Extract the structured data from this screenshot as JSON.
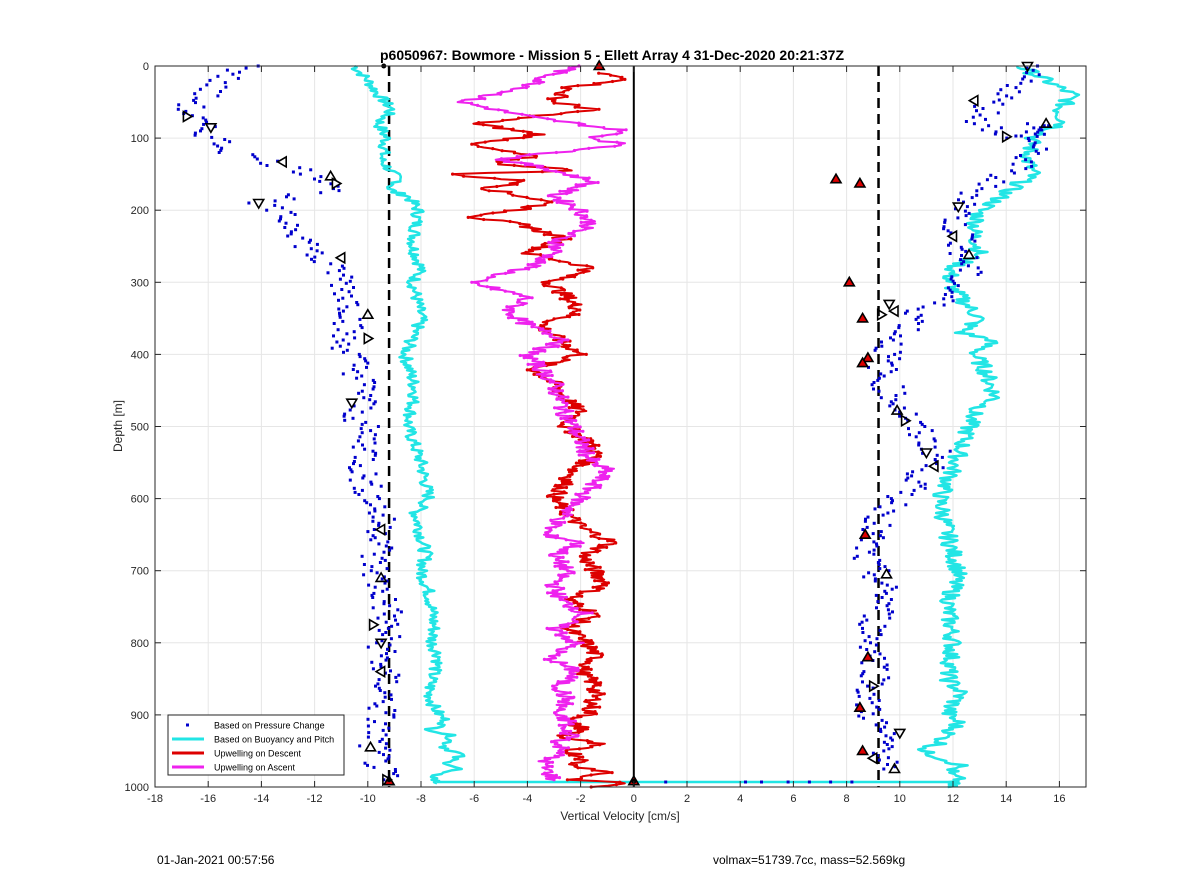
{
  "footer": {
    "timestamp": "01-Jan-2021 00:57:56",
    "volmax_mass": "volmax=51739.7cc, mass=52.569kg"
  },
  "chart_data": {
    "type": "scatter",
    "title": "p6050967: Bowmore - Mission 5 - Ellett Array 4 31-Dec-2020 20:21:37Z",
    "xlabel": "Vertical Velocity [cm/s]",
    "ylabel": "Depth [m]",
    "xlim": [
      -18,
      17
    ],
    "ylim": [
      0,
      1000
    ],
    "y_reversed": true,
    "grid": true,
    "xticks": [
      -18,
      -16,
      -14,
      -12,
      -10,
      -8,
      -6,
      -4,
      -2,
      0,
      2,
      4,
      6,
      8,
      10,
      12,
      14,
      16
    ],
    "yticks": [
      0,
      100,
      200,
      300,
      400,
      500,
      600,
      700,
      800,
      900,
      1000
    ],
    "legend_position": "bottom-left",
    "colors": {
      "pressure": "#0000cc",
      "buoyancy": "#22e5e5",
      "descent": "#dd0000",
      "ascent": "#ee22ee",
      "dashed": "#000000",
      "zero": "#000000"
    },
    "reference_lines": {
      "dashed_x": [
        -9.2,
        9.2
      ],
      "zero_x": 0
    },
    "series": [
      {
        "name": "Based on Pressure Change",
        "style": "dots",
        "descent_x": [
          -14.5,
          -15.5,
          -16.8,
          -16.2,
          -15.0,
          -13.5,
          -12.0,
          -11.3,
          -11.0,
          -14.3,
          -13.5,
          -12.5,
          -12.0,
          -11.0,
          -10.8,
          -10.5,
          -10.7,
          -11.0,
          -10.6,
          -10.3,
          -10.0,
          -10.5,
          -10.2,
          -10.0,
          -10.0,
          -10.2,
          -10.1,
          -9.8,
          -9.6,
          -9.5,
          -9.3,
          -9.8,
          -9.7,
          -9.6,
          -9.4,
          -9.2,
          -9.3,
          -9.4,
          -9.5,
          -9.3,
          -9.5,
          -9.8,
          -9.6,
          -9.4
        ],
        "descent_y": [
          0,
          20,
          60,
          90,
          120,
          135,
          150,
          160,
          170,
          190,
          200,
          230,
          265,
          290,
          310,
          340,
          360,
          380,
          400,
          430,
          460,
          480,
          500,
          520,
          540,
          560,
          580,
          600,
          620,
          640,
          660,
          680,
          700,
          720,
          740,
          760,
          780,
          800,
          830,
          860,
          900,
          940,
          970,
          990
        ],
        "ascent_x": [
          14.8,
          14.5,
          13.5,
          13.0,
          14.5,
          15.3,
          14.8,
          13.0,
          12.5,
          12.0,
          12.5,
          12.3,
          12.6,
          11.8,
          10.8,
          10.5,
          9.8,
          9.5,
          9.3,
          9.8,
          10.2,
          10.5,
          11.0,
          11.5,
          11.0,
          10.5,
          10.0,
          9.5,
          9.0,
          8.8,
          8.6,
          9.0,
          9.3,
          9.5,
          9.2,
          9.0,
          9.0,
          9.2,
          9.0,
          8.7,
          9.2,
          9.6,
          9.4
        ],
        "ascent_y": [
          0,
          30,
          50,
          80,
          100,
          80,
          130,
          170,
          195,
          220,
          240,
          260,
          280,
          320,
          340,
          360,
          380,
          400,
          430,
          460,
          480,
          500,
          520,
          540,
          560,
          580,
          600,
          620,
          640,
          660,
          680,
          700,
          720,
          740,
          760,
          780,
          800,
          840,
          860,
          880,
          920,
          950,
          975
        ]
      },
      {
        "name": "Based on Buoyancy and Pitch",
        "style": "line",
        "descent_x": [
          -10.5,
          -10.0,
          -9.6,
          -9.1,
          -9.6,
          -9.3,
          -9.4,
          -9.5,
          -8.8,
          -9.2,
          -9.0,
          -8.5,
          -8.1,
          -8.3,
          -8.0,
          -8.3,
          -8.0,
          -8.6,
          -8.2,
          -8.5,
          -8.0,
          -7.7,
          -8.2,
          -8.0,
          -7.8,
          -8.0,
          -7.7,
          -7.6,
          -7.5,
          -7.6,
          -7.3,
          -7.6,
          -7.7,
          -7.6,
          -7.5,
          -7.3,
          -7.0,
          -7.6,
          -6.8,
          -7.1,
          -6.5,
          -7.0,
          -6.6,
          -7.4,
          -7.5,
          -7.4
        ],
        "descent_y": [
          0,
          20,
          40,
          60,
          80,
          100,
          120,
          130,
          160,
          170,
          175,
          180,
          200,
          250,
          280,
          300,
          350,
          400,
          450,
          500,
          550,
          600,
          620,
          650,
          680,
          700,
          730,
          750,
          780,
          800,
          820,
          850,
          870,
          880,
          890,
          900,
          910,
          920,
          930,
          945,
          955,
          965,
          975,
          980,
          990,
          995
        ],
        "ascent_x": [
          14.5,
          15.5,
          16.5,
          16.0,
          16.2,
          15.0,
          14.8,
          15.0,
          14.2,
          13.5,
          13.0,
          12.8,
          13.0,
          12.0,
          11.8,
          12.5,
          13.0,
          12.3,
          13.5,
          12.8,
          13.2,
          13.6,
          12.8,
          12.4,
          12.0,
          11.5,
          11.8,
          12.2,
          11.8,
          12.0,
          11.8,
          12.3,
          11.9,
          11.8,
          12.2,
          12.0,
          11.7,
          11.5,
          10.8,
          11.6,
          12.3,
          11.8,
          12.2,
          11.9,
          11.8
        ],
        "ascent_y": [
          0,
          20,
          40,
          60,
          80,
          100,
          130,
          150,
          170,
          190,
          200,
          230,
          260,
          280,
          300,
          330,
          350,
          370,
          380,
          400,
          420,
          460,
          480,
          520,
          560,
          600,
          650,
          700,
          750,
          800,
          850,
          870,
          890,
          900,
          910,
          920,
          930,
          940,
          950,
          960,
          970,
          980,
          990,
          995,
          1000
        ]
      },
      {
        "name": "Upwelling on Descent",
        "style": "line",
        "x": [
          -1.2,
          -0.2,
          -2.5,
          -3.0,
          -1.5,
          -6.0,
          -3.5,
          -6.2,
          -3.8,
          -5.3,
          -2.0,
          -7.0,
          -4.0,
          -5.5,
          -3.0,
          -6.0,
          -4.2,
          -2.6,
          -4.0,
          -1.5,
          -3.2,
          -2.5,
          -2.0,
          -3.5,
          -2.8,
          -2.0,
          -3.8,
          -3.0,
          -2.6,
          -2.0,
          -2.6,
          -1.7,
          -1.4,
          -2.2,
          -2.6,
          -3.0,
          -2.5,
          -2.0,
          -0.8,
          -1.9,
          -1.5,
          -1.0,
          -2.5,
          -1.4,
          -2.5,
          -1.8,
          -1.4,
          -2.0,
          -1.4,
          -1.5,
          -1.7,
          -2.5,
          -1.8,
          -2.8,
          -1.4,
          -2.5,
          -1.8,
          -2.3,
          -1.5,
          -0.9,
          -1.8,
          -2.2,
          -0.2,
          -1.6
        ],
        "y": [
          10,
          20,
          30,
          50,
          60,
          80,
          95,
          110,
          125,
          135,
          145,
          150,
          160,
          170,
          190,
          210,
          220,
          240,
          260,
          280,
          300,
          320,
          340,
          360,
          380,
          400,
          420,
          440,
          460,
          480,
          500,
          520,
          540,
          560,
          580,
          600,
          620,
          640,
          660,
          680,
          700,
          720,
          740,
          760,
          780,
          800,
          820,
          840,
          860,
          880,
          900,
          910,
          920,
          930,
          940,
          950,
          960,
          970,
          975,
          980,
          985,
          990,
          995,
          1000
        ]
      },
      {
        "name": "Upwelling on Ascent",
        "style": "line",
        "x": [
          -2.0,
          -3.0,
          -4.0,
          -6.5,
          -4.0,
          -0.3,
          -1.5,
          -0.3,
          -3.0,
          -5.0,
          -3.5,
          -1.5,
          -3.0,
          -2.0,
          -1.6,
          -2.8,
          -3.0,
          -4.0,
          -6.2,
          -4.0,
          -4.7,
          -4.0,
          -2.5,
          -4.0,
          -3.5,
          -3.0,
          -2.6,
          -2.0,
          -1.6,
          -1.0,
          -1.5,
          -2.0,
          -2.8,
          -3.4,
          -2.0,
          -3.0,
          -2.5,
          -3.0,
          -2.8,
          -1.8,
          -3.0,
          -2.2,
          -3.2,
          -2.2,
          -2.8,
          -2.5,
          -3.0,
          -2.4,
          -2.8,
          -2.2,
          -3.0,
          -2.5,
          -3.2,
          -3.4,
          -3.0
        ],
        "y": [
          0,
          10,
          30,
          50,
          70,
          90,
          100,
          110,
          120,
          130,
          140,
          160,
          180,
          200,
          220,
          240,
          260,
          280,
          300,
          320,
          340,
          360,
          380,
          400,
          420,
          440,
          480,
          520,
          550,
          560,
          580,
          600,
          630,
          650,
          660,
          680,
          700,
          720,
          740,
          760,
          780,
          800,
          820,
          840,
          860,
          880,
          900,
          910,
          920,
          930,
          940,
          950,
          960,
          970,
          990
        ]
      }
    ],
    "markers": {
      "descent_triangles_left": [
        [
          -16.8,
          70
        ],
        [
          -15.9,
          85
        ],
        [
          -13.2,
          133
        ],
        [
          -11.4,
          153
        ],
        [
          -11.2,
          163
        ],
        [
          -14.1,
          190
        ],
        [
          -11.0,
          266
        ],
        [
          -10.0,
          345
        ],
        [
          -10.0,
          378
        ],
        [
          -10.6,
          467
        ],
        [
          -9.5,
          643
        ],
        [
          -9.5,
          710
        ],
        [
          -9.8,
          775
        ],
        [
          -9.5,
          800
        ],
        [
          -9.5,
          840
        ],
        [
          -9.9,
          945
        ],
        [
          -9.3,
          990
        ]
      ],
      "ascent_triangles_right": [
        [
          14.8,
          0
        ],
        [
          12.8,
          48
        ],
        [
          15.5,
          80
        ],
        [
          14.0,
          98
        ],
        [
          12.2,
          195
        ],
        [
          12.0,
          236
        ],
        [
          12.6,
          262
        ],
        [
          9.3,
          345
        ],
        [
          9.6,
          330
        ],
        [
          9.8,
          340
        ],
        [
          9.9,
          478
        ],
        [
          10.2,
          492
        ],
        [
          11.0,
          536
        ],
        [
          11.3,
          555
        ],
        [
          9.5,
          705
        ],
        [
          9.0,
          860
        ],
        [
          10.0,
          925
        ],
        [
          9.0,
          960
        ],
        [
          9.8,
          975
        ]
      ],
      "red_triangles": [
        [
          -1.3,
          0
        ],
        [
          7.6,
          157
        ],
        [
          8.5,
          163
        ],
        [
          8.1,
          300
        ],
        [
          8.6,
          350
        ],
        [
          8.8,
          405
        ],
        [
          8.6,
          412
        ],
        [
          8.7,
          650
        ],
        [
          8.8,
          820
        ],
        [
          8.5,
          890
        ],
        [
          8.6,
          950
        ],
        [
          0,
          992
        ],
        [
          -9.2,
          992
        ]
      ],
      "black_dots": [
        [
          -9.2,
          990
        ],
        [
          0.0,
          992
        ],
        [
          -9.4,
          0.0
        ]
      ]
    },
    "bottom_spike": {
      "pressure_dots_x": [
        1.2,
        4.2,
        4.8,
        5.8,
        6.6,
        7.4,
        8.2
      ],
      "y": 993
    }
  }
}
